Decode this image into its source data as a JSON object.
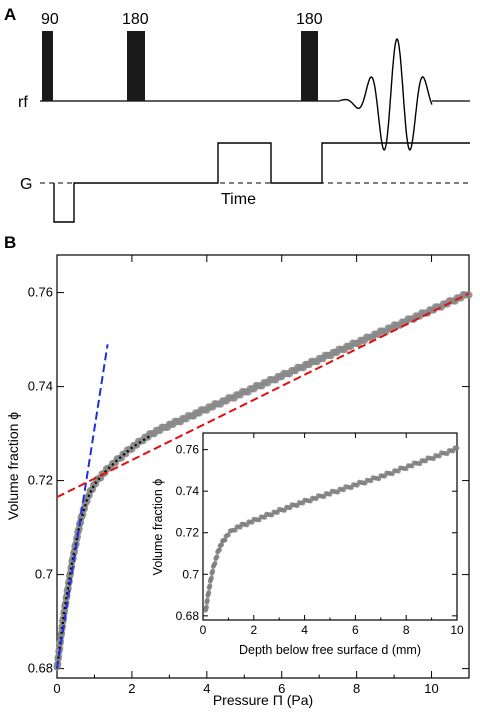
{
  "panel_a": {
    "label": "A",
    "pulse_labels": [
      "90",
      "180",
      "180"
    ],
    "rf_label": "rf",
    "g_label": "G",
    "time_label": "Time"
  },
  "panel_b": {
    "label": "B"
  },
  "chart_data": [
    {
      "type": "scatter",
      "title": "",
      "xlabel": "Pressure Π (Pa)",
      "ylabel": "Volume fraction ϕ",
      "xlim": [
        0,
        11
      ],
      "ylim": [
        0.678,
        0.768
      ],
      "xticks": [
        0,
        2,
        4,
        6,
        8,
        10
      ],
      "yticks": [
        0.68,
        0.7,
        0.72,
        0.74,
        0.76
      ],
      "ytick_labels": [
        "0.68",
        "0.7",
        "0.72",
        "0.74",
        "0.76"
      ],
      "grid": false,
      "series": [
        {
          "style": "gray data markers",
          "color": "#8a8a8a",
          "x": [
            0.0,
            0.1,
            0.2,
            0.3,
            0.4,
            0.5,
            0.6,
            0.7,
            0.8,
            0.9,
            1.0,
            1.1,
            1.2,
            1.4,
            1.6,
            1.8,
            2.0,
            2.3,
            2.6,
            3.0,
            3.5,
            4.0,
            5.0,
            6.0,
            7.0,
            8.0,
            9.0,
            10.0,
            11.0
          ],
          "y": [
            0.68,
            0.6865,
            0.6925,
            0.6975,
            0.7025,
            0.7065,
            0.7105,
            0.7135,
            0.716,
            0.7178,
            0.7192,
            0.7203,
            0.7212,
            0.7228,
            0.7243,
            0.7257,
            0.727,
            0.7288,
            0.7303,
            0.7318,
            0.7335,
            0.7353,
            0.7388,
            0.7423,
            0.7458,
            0.7493,
            0.7528,
            0.7563,
            0.7598
          ]
        },
        {
          "style": "black dotted fit",
          "color": "#000000",
          "x": [
            0.0,
            0.2,
            0.4,
            0.6,
            0.8,
            1.0,
            1.2,
            1.6,
            2.0,
            2.5
          ],
          "y": [
            0.68,
            0.6925,
            0.7025,
            0.7105,
            0.716,
            0.7192,
            0.7212,
            0.7243,
            0.727,
            0.7296
          ]
        },
        {
          "style": "blue dashed line",
          "color": "#1f2ee0",
          "x": [
            0.0,
            1.35
          ],
          "y": [
            0.68,
            0.749
          ]
        },
        {
          "style": "red dashed line",
          "color": "#e01010",
          "x": [
            0.0,
            11.0
          ],
          "y": [
            0.7165,
            0.7598
          ]
        }
      ]
    },
    {
      "type": "scatter",
      "title": "",
      "xlabel": "Depth below free surface d (mm)",
      "ylabel": "Volume fraction ϕ",
      "xlim": [
        0,
        10
      ],
      "ylim": [
        0.678,
        0.768
      ],
      "xticks": [
        0,
        2,
        4,
        6,
        8,
        10
      ],
      "yticks": [
        0.68,
        0.7,
        0.72,
        0.74,
        0.76
      ],
      "ytick_labels": [
        "0.68",
        "0.7",
        "0.72",
        "0.74",
        "0.76"
      ],
      "grid": false,
      "series": [
        {
          "style": "gray data markers",
          "color": "#808080",
          "x": [
            0.1,
            0.2,
            0.3,
            0.4,
            0.5,
            0.6,
            0.7,
            0.8,
            0.9,
            1.0,
            1.2,
            1.4,
            1.6,
            1.8,
            2.0,
            2.5,
            3.0,
            3.5,
            4.0,
            5.0,
            6.0,
            7.0,
            8.0,
            9.0,
            10.0
          ],
          "y": [
            0.682,
            0.69,
            0.697,
            0.703,
            0.707,
            0.711,
            0.714,
            0.716,
            0.7178,
            0.7195,
            0.7215,
            0.7228,
            0.7238,
            0.7248,
            0.7258,
            0.7282,
            0.7305,
            0.7328,
            0.735,
            0.739,
            0.743,
            0.747,
            0.7515,
            0.756,
            0.7605
          ]
        }
      ]
    }
  ]
}
